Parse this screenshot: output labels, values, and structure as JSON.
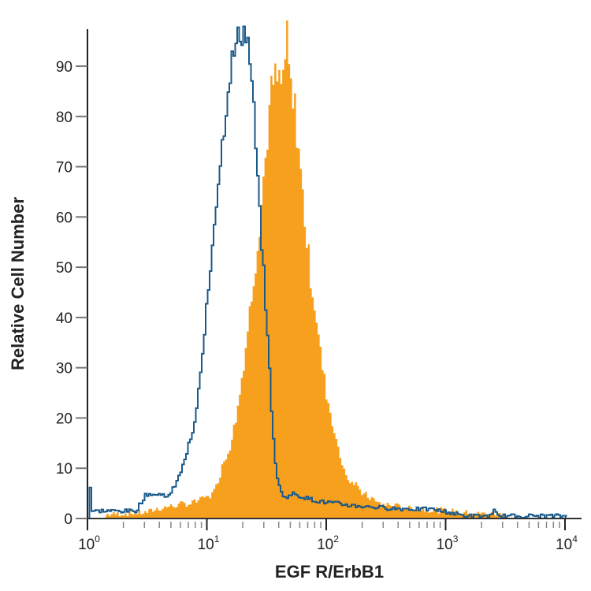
{
  "chart_data": {
    "type": "area",
    "title": "",
    "xlabel": "EGF R/ErbB1",
    "ylabel": "Relative Cell Number",
    "x_scale": "log",
    "xlim": [
      1,
      10000
    ],
    "ylim": [
      0,
      97
    ],
    "grid": false,
    "x_ticks": [
      {
        "base": "10",
        "exp": "0",
        "value": 1
      },
      {
        "base": "10",
        "exp": "1",
        "value": 10
      },
      {
        "base": "10",
        "exp": "2",
        "value": 100
      },
      {
        "base": "10",
        "exp": "3",
        "value": 1000
      },
      {
        "base": "10",
        "exp": "4",
        "value": 10000
      }
    ],
    "y_ticks": [
      0,
      10,
      20,
      30,
      40,
      50,
      60,
      70,
      80,
      90
    ],
    "series": [
      {
        "style": "filled",
        "color": "#f7a01e",
        "points": [
          [
            1.4,
            0.8
          ],
          [
            2,
            1
          ],
          [
            3,
            1.2
          ],
          [
            3.9,
            2
          ],
          [
            5,
            2.5
          ],
          [
            7.1,
            3
          ],
          [
            9,
            4
          ],
          [
            11.2,
            5
          ],
          [
            13,
            10
          ],
          [
            15.2,
            14
          ],
          [
            17.7,
            22
          ],
          [
            20.6,
            33
          ],
          [
            23.9,
            47
          ],
          [
            27.9,
            62
          ],
          [
            30,
            70
          ],
          [
            32.5,
            80
          ],
          [
            35,
            86
          ],
          [
            37.8,
            87
          ],
          [
            40.9,
            85
          ],
          [
            44,
            89
          ],
          [
            45,
            97
          ],
          [
            47.5,
            90
          ],
          [
            51,
            82
          ],
          [
            55,
            80
          ],
          [
            59.5,
            70
          ],
          [
            64,
            62
          ],
          [
            69,
            53
          ],
          [
            81,
            40
          ],
          [
            94,
            28
          ],
          [
            109,
            20
          ],
          [
            127,
            13
          ],
          [
            148,
            8
          ],
          [
            201,
            5
          ],
          [
            272,
            3
          ],
          [
            500,
            2
          ],
          [
            1070,
            1.5
          ],
          [
            1680,
            1
          ],
          [
            3060,
            0.8
          ],
          [
            3200,
            0.8
          ]
        ]
      },
      {
        "style": "outline",
        "color": "#1a5a8a",
        "points": [
          [
            1,
            0
          ],
          [
            1.01,
            11
          ],
          [
            1.04,
            6
          ],
          [
            1.06,
            1.5
          ],
          [
            2.5,
            1.5
          ],
          [
            3.08,
            5
          ],
          [
            4.86,
            4.5
          ],
          [
            6.1,
            10
          ],
          [
            7.7,
            18
          ],
          [
            8.9,
            30
          ],
          [
            9.6,
            40
          ],
          [
            10.4,
            48
          ],
          [
            11.2,
            58
          ],
          [
            12.1,
            66
          ],
          [
            13,
            73
          ],
          [
            14,
            80
          ],
          [
            15.2,
            88
          ],
          [
            16.4,
            92
          ],
          [
            17.7,
            95
          ],
          [
            19.1,
            97
          ],
          [
            20.6,
            97
          ],
          [
            22.2,
            93
          ],
          [
            23.9,
            84
          ],
          [
            25.8,
            70
          ],
          [
            27.9,
            57
          ],
          [
            30.1,
            45
          ],
          [
            32.5,
            32
          ],
          [
            35,
            18
          ],
          [
            37.8,
            8
          ],
          [
            44,
            4
          ],
          [
            51,
            5
          ],
          [
            81,
            3.5
          ],
          [
            172,
            2.5
          ],
          [
            370,
            2
          ],
          [
            790,
            1.8
          ],
          [
            1450,
            0.5
          ],
          [
            2400,
            0.5
          ],
          [
            2500,
            1.5
          ],
          [
            2700,
            0.5
          ],
          [
            10000,
            0.5
          ],
          [
            10000,
            0
          ]
        ]
      }
    ]
  }
}
